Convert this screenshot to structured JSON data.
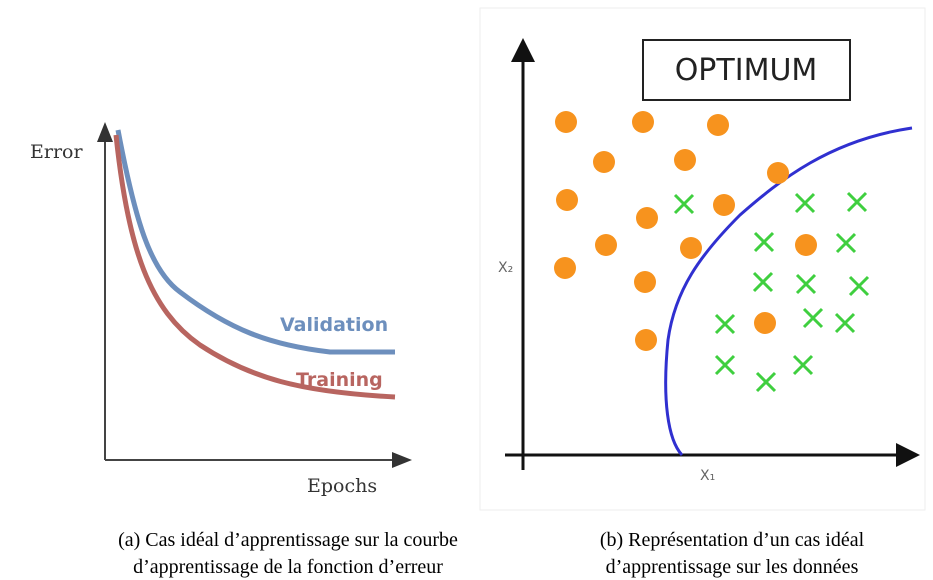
{
  "figures": [
    {
      "y_label": "Error",
      "x_label": "Epochs",
      "series_labels": [
        "Validation",
        "Training"
      ],
      "caption": [
        "(a) Cas idéal d’apprentissage sur la courbe",
        "d’apprentissage de la fonction d’erreur"
      ]
    },
    {
      "box_label": "OPTIMUM",
      "y_label": "X₂",
      "x_label": "X₁",
      "caption": [
        "(b) Représentation d’un cas idéal",
        "d’apprentissage sur les données"
      ]
    }
  ]
}
